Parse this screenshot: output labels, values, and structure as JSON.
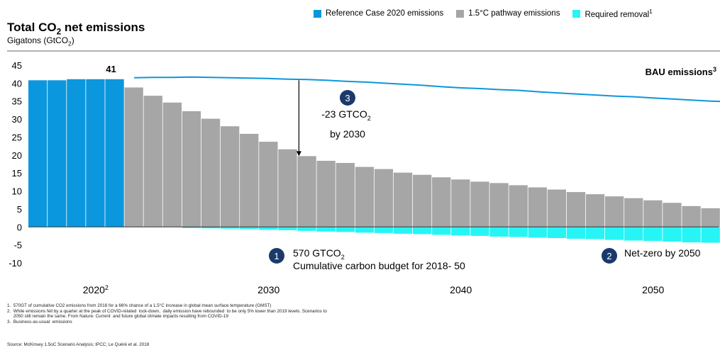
{
  "header": {
    "title_main": "Total CO",
    "title_sub": "2",
    "title_tail": " net emissions",
    "subtitle_main": "Gigatons (GtCO",
    "subtitle_sub": "2",
    "subtitle_tail": ")"
  },
  "legend": [
    {
      "label": "Reference Case 2020 emissions",
      "color": "#0b97dd"
    },
    {
      "label": "1.5°C pathway emissions",
      "color": "#a6a6a6"
    },
    {
      "label": "Required removal",
      "sup": "1",
      "color": "#27f4f4"
    }
  ],
  "chart_data": {
    "type": "bar",
    "ylim": [
      -10,
      45
    ],
    "y_ticks": [
      -10,
      -5,
      0,
      5,
      10,
      15,
      20,
      25,
      30,
      35,
      40,
      45
    ],
    "x_tick_labels": [
      {
        "label": "2020",
        "sup": "2",
        "index": 3
      },
      {
        "label": "2030",
        "index": 12
      },
      {
        "label": "2040",
        "index": 22
      },
      {
        "label": "2050",
        "index": 32
      }
    ],
    "reference_case": {
      "color": "#0b97dd",
      "values": [
        40.8,
        40.8,
        41.1,
        41.1,
        41.1
      ],
      "peak_label": "41"
    },
    "pathway": {
      "color": "#a6a6a6",
      "values": [
        38.8,
        36.5,
        34.6,
        32.2,
        30.1,
        28.0,
        25.9,
        23.7,
        21.6,
        19.7,
        18.4,
        17.8,
        16.7,
        16.1,
        15.1,
        14.5,
        13.8,
        13.2,
        12.6,
        12.2,
        11.6,
        11.0,
        10.4,
        9.7,
        9.1,
        8.5,
        8.0,
        7.4,
        6.7,
        5.8,
        5.2,
        4.6
      ]
    },
    "removal": {
      "color": "#27f4f4",
      "values": [
        0,
        0,
        0,
        -0.3,
        -0.4,
        -0.5,
        -0.6,
        -0.8,
        -0.9,
        -1.1,
        -1.3,
        -1.4,
        -1.6,
        -1.7,
        -1.9,
        -2.0,
        -2.2,
        -2.4,
        -2.5,
        -2.7,
        -2.8,
        -3.0,
        -3.1,
        -3.3,
        -3.4,
        -3.6,
        -3.8,
        -3.9,
        -4.1,
        -4.3,
        -4.4,
        -4.6
      ]
    },
    "bau": {
      "color": "#0b97dd",
      "label": "BAU emissions",
      "label_sup": "3",
      "values": [
        41.5,
        41.6,
        41.6,
        41.7,
        41.6,
        41.5,
        41.4,
        41.3,
        41.1,
        41.0,
        40.8,
        40.5,
        40.3,
        40.0,
        39.7,
        39.4,
        39.0,
        38.7,
        38.5,
        38.2,
        38.0,
        37.6,
        37.3,
        37.0,
        36.7,
        36.4,
        36.2,
        35.9,
        35.6,
        35.3,
        35.0,
        34.8
      ]
    },
    "annotations": [
      {
        "id": "3",
        "text1_main": "-23 GTCO",
        "text1_sub": "2",
        "text2": "by 2030"
      },
      {
        "id": "1",
        "text1_main": "570 GTCO",
        "text1_sub": "2",
        "text2": "Cumulative  carbon budget  for 2018- 50"
      },
      {
        "id": "2",
        "text1_main": "Net-zero by 2050"
      }
    ]
  },
  "footnotes": [
    "1.  570GT of cumulative CO2 emissions from 2018 for a 66% chance of a 1.5°C increase in global mean surface temperature (GMST)",
    "2.  While emissions fell by a quarter at the peak of COVID-related  lock-down,  daily emission have rebounded  to be only 5% lower than 2019 levels. Scenarios to",
    "     2050 still remain the same. From Nature: Current  and future global climate impacts resulting from COVID-19",
    "3.  Business-as-usual  emissions"
  ],
  "source": "Source: McKinsey 1.5oC Scenario Analysis; IPCC; Le Quéré et al. 2018"
}
